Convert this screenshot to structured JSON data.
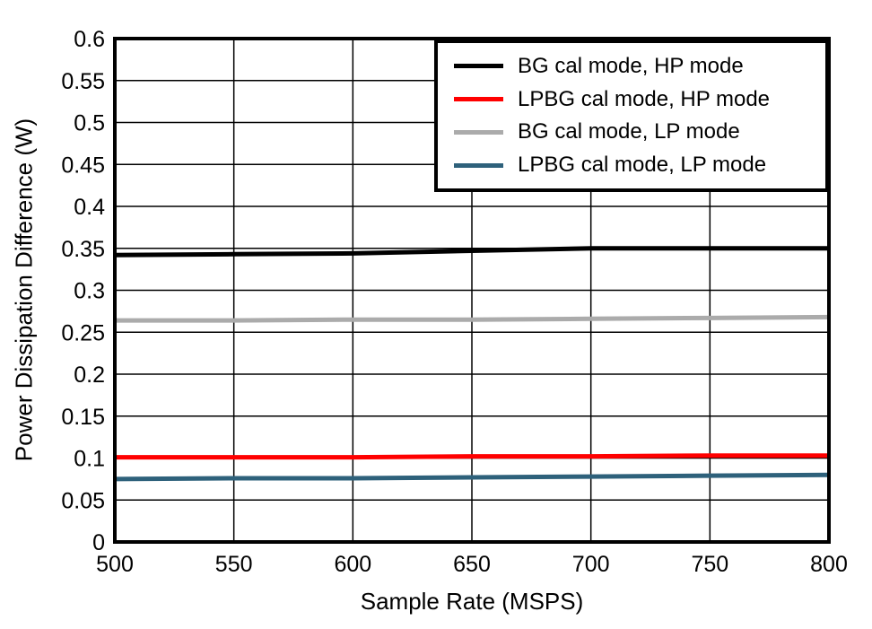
{
  "chart_data": {
    "type": "line",
    "title": "",
    "xlabel": "Sample Rate (MSPS)",
    "ylabel": "Power Dissipation Difference (W)",
    "xlim": [
      500,
      800
    ],
    "ylim": [
      0,
      0.6
    ],
    "grid": true,
    "legend_position": "top-right",
    "x_ticks": [
      500,
      550,
      600,
      650,
      700,
      750,
      800
    ],
    "x_tick_labels": [
      "500",
      "550",
      "600",
      "650",
      "700",
      "750",
      "800"
    ],
    "y_ticks": [
      0,
      0.05,
      0.1,
      0.15,
      0.2,
      0.25,
      0.3,
      0.35,
      0.4,
      0.45,
      0.5,
      0.55,
      0.6
    ],
    "y_tick_labels": [
      "0",
      "0.05",
      "0.1",
      "0.15",
      "0.2",
      "0.25",
      "0.3",
      "0.35",
      "0.4",
      "0.45",
      "0.5",
      "0.55",
      "0.6"
    ],
    "x": [
      500,
      550,
      600,
      650,
      700,
      750,
      800
    ],
    "series": [
      {
        "name": "BG cal mode, HP mode",
        "color": "#000000",
        "values": [
          0.342,
          0.343,
          0.344,
          0.347,
          0.35,
          0.35,
          0.35
        ]
      },
      {
        "name": "LPBG cal mode, HP mode",
        "color": "#FF0000",
        "values": [
          0.101,
          0.101,
          0.101,
          0.102,
          0.102,
          0.103,
          0.103
        ]
      },
      {
        "name": "BG cal mode, LP mode",
        "color": "#ABABAB",
        "values": [
          0.264,
          0.264,
          0.265,
          0.265,
          0.266,
          0.267,
          0.268
        ]
      },
      {
        "name": "LPBG cal mode, LP mode",
        "color": "#2E617B",
        "values": [
          0.075,
          0.076,
          0.076,
          0.077,
          0.078,
          0.079,
          0.08
        ]
      }
    ]
  },
  "colors": {
    "background": "#FFFFFF",
    "frame": "#000000",
    "grid": "#000000",
    "text": "#000000"
  }
}
